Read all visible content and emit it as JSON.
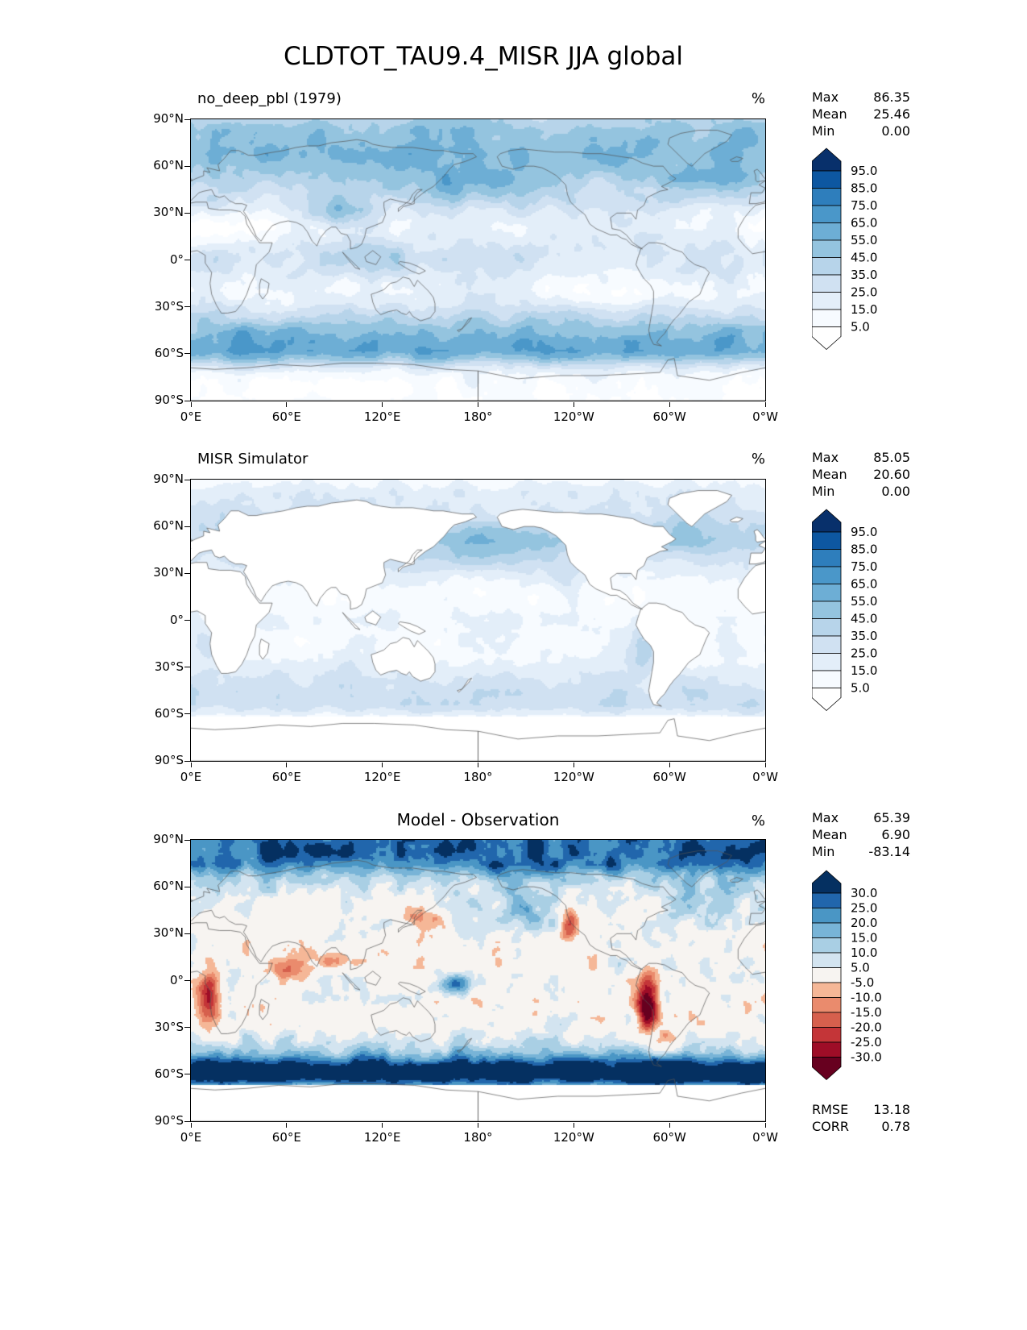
{
  "title": "CLDTOT_TAU9.4_MISR JJA global",
  "axes": {
    "x_ticks": [
      "0°E",
      "60°E",
      "120°E",
      "180°",
      "120°W",
      "60°W",
      "0°W"
    ],
    "y_ticks": [
      "90°N",
      "60°N",
      "30°N",
      "0°",
      "30°S",
      "60°S",
      "90°S"
    ]
  },
  "panels": [
    {
      "title": "no_deep_pbl (1979)",
      "unit": "%",
      "stats": [
        {
          "label": "Max",
          "value": "86.35"
        },
        {
          "label": "Mean",
          "value": "25.46"
        },
        {
          "label": "Min",
          "value": "0.00"
        }
      ],
      "colorbar_labels": [
        "95.0",
        "85.0",
        "75.0",
        "65.0",
        "55.0",
        "45.0",
        "35.0",
        "25.0",
        "15.0",
        "5.0"
      ]
    },
    {
      "title": "MISR Simulator",
      "unit": "%",
      "stats": [
        {
          "label": "Max",
          "value": "85.05"
        },
        {
          "label": "Mean",
          "value": "20.60"
        },
        {
          "label": "Min",
          "value": "0.00"
        }
      ],
      "colorbar_labels": [
        "95.0",
        "85.0",
        "75.0",
        "65.0",
        "55.0",
        "45.0",
        "35.0",
        "25.0",
        "15.0",
        "5.0"
      ]
    },
    {
      "title": "Model - Observation",
      "unit": "%",
      "stats": [
        {
          "label": "Max",
          "value": "65.39"
        },
        {
          "label": "Mean",
          "value": "6.90"
        },
        {
          "label": "Min",
          "value": "-83.14"
        }
      ],
      "colorbar_labels": [
        "30.0",
        "25.0",
        "20.0",
        "15.0",
        "10.0",
        "5.0",
        "-5.0",
        "-10.0",
        "-15.0",
        "-20.0",
        "-25.0",
        "-30.0"
      ],
      "extra_stats": [
        {
          "label": "RMSE",
          "value": "13.18"
        },
        {
          "label": "CORR",
          "value": "0.78"
        }
      ]
    }
  ],
  "chart_data": {
    "type": "heatmap",
    "title": "CLDTOT_TAU9.4_MISR JJA global",
    "variable": "CLDTOT_TAU9.4_MISR",
    "season": "JJA",
    "region": "global",
    "unit": "%",
    "projection": {
      "lon_range": [
        0,
        360
      ],
      "lat_range": [
        -90,
        90
      ]
    },
    "x_tick_labels": [
      "0°E",
      "60°E",
      "120°E",
      "180°",
      "120°W",
      "60°W",
      "0°W"
    ],
    "y_tick_labels": [
      "90°N",
      "60°N",
      "30°N",
      "0°",
      "30°S",
      "60°S",
      "90°S"
    ],
    "panels": [
      {
        "title": "no_deep_pbl (1979)",
        "colormap": "Blues",
        "extend": "both",
        "levels": [
          5,
          15,
          25,
          35,
          45,
          55,
          65,
          75,
          85,
          95
        ],
        "max": 86.35,
        "mean": 25.46,
        "min": 0.0
      },
      {
        "title": "MISR Simulator",
        "colormap": "Blues",
        "extend": "both",
        "levels": [
          5,
          15,
          25,
          35,
          45,
          55,
          65,
          75,
          85,
          95
        ],
        "max": 85.05,
        "mean": 20.6,
        "min": 0.0
      },
      {
        "title": "Model - Observation",
        "colormap": "RdBu",
        "extend": "both",
        "levels": [
          -30,
          -25,
          -20,
          -15,
          -10,
          -5,
          5,
          10,
          15,
          20,
          25,
          30
        ],
        "max": 65.39,
        "mean": 6.9,
        "min": -83.14,
        "rmse": 13.18,
        "corr": 0.78
      }
    ],
    "colors": {
      "blues_bins": [
        "#ffffff",
        "#f7fbff",
        "#e3eef9",
        "#d0e1f2",
        "#b7d4ea",
        "#94c4df",
        "#6daed5",
        "#4a97c9",
        "#2e7ebc",
        "#0d57a1",
        "#08306b"
      ],
      "rdbu_bins": [
        "#67001f",
        "#9e0d27",
        "#c43538",
        "#d6604d",
        "#ea8b6d",
        "#f5b797",
        "#f7f4f1",
        "#d3e4f0",
        "#a9cfe4",
        "#78b4d7",
        "#4a96c5",
        "#2166ac",
        "#053061"
      ]
    }
  }
}
